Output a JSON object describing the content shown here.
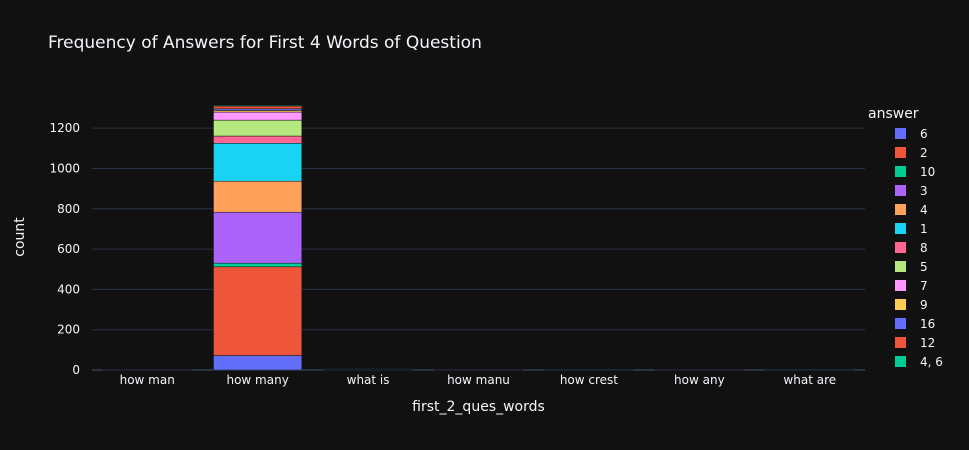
{
  "chart_data": {
    "type": "bar",
    "stacked": true,
    "title": "Frequency of Answers for First 4 Words of Question",
    "xlabel": "first_2_ques_words",
    "ylabel": "count",
    "ylim": [
      0,
      1320
    ],
    "yticks": [
      0,
      200,
      400,
      600,
      800,
      1000,
      1200
    ],
    "grid": true,
    "legend_title": "answer",
    "legend_position": "right",
    "categories": [
      "how man",
      "how many",
      "what is",
      "how manu",
      "how crest",
      "how any",
      "what are"
    ],
    "series": [
      {
        "name": "6",
        "color": "#636efa",
        "values": [
          1,
          72,
          1,
          0,
          0,
          1,
          0
        ]
      },
      {
        "name": "2",
        "color": "#ef553b",
        "values": [
          1,
          440,
          2,
          1,
          1,
          1,
          0
        ]
      },
      {
        "name": "10",
        "color": "#00cc96",
        "values": [
          0,
          18,
          0,
          0,
          0,
          0,
          1
        ]
      },
      {
        "name": "3",
        "color": "#ab63fa",
        "values": [
          1,
          253,
          2,
          1,
          0,
          1,
          0
        ]
      },
      {
        "name": "4",
        "color": "#ffa15a",
        "values": [
          0,
          154,
          1,
          0,
          0,
          0,
          0
        ]
      },
      {
        "name": "1",
        "color": "#19d3f3",
        "values": [
          0,
          188,
          1,
          0,
          1,
          0,
          1
        ]
      },
      {
        "name": "8",
        "color": "#ff6692",
        "values": [
          0,
          36,
          0,
          0,
          0,
          0,
          0
        ]
      },
      {
        "name": "5",
        "color": "#b6e880",
        "values": [
          0,
          79,
          0,
          0,
          0,
          0,
          0
        ]
      },
      {
        "name": "7",
        "color": "#ff97ff",
        "values": [
          0,
          40,
          0,
          0,
          0,
          0,
          0
        ]
      },
      {
        "name": "9",
        "color": "#fecb52",
        "values": [
          0,
          8,
          0,
          0,
          0,
          0,
          0
        ]
      },
      {
        "name": "16",
        "color": "#636efa",
        "values": [
          0,
          8,
          0,
          0,
          0,
          0,
          0
        ]
      },
      {
        "name": "12",
        "color": "#ef553b",
        "values": [
          0,
          14,
          0,
          0,
          0,
          0,
          0
        ]
      },
      {
        "name": "4, 6",
        "color": "#00cc96",
        "values": [
          0,
          4,
          0,
          0,
          0,
          0,
          0
        ]
      }
    ]
  }
}
